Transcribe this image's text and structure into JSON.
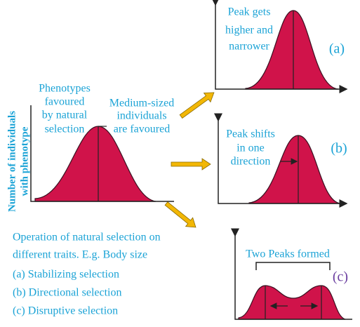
{
  "y_axis_label": [
    "Number of individuals",
    "with phenotype"
  ],
  "main_graph": {
    "left_label": [
      "Phenotypes",
      "favoured",
      "by natural",
      "selection"
    ],
    "right_label": [
      "Medium-sized",
      "individuals",
      "are favoured"
    ]
  },
  "graph_a": {
    "label": [
      "Peak gets",
      "higher and",
      "narrower"
    ],
    "tag": "(a)"
  },
  "graph_b": {
    "label": [
      "Peak shifts",
      "in one",
      "direction"
    ],
    "tag": "(b)"
  },
  "graph_c": {
    "label": "Two Peaks formed",
    "tag": "(c)"
  },
  "caption": [
    "Operation of natural selection on",
    "different traits. E.g. Body size",
    "(a) Stabilizing selection",
    "(b) Directional selection",
    "(c) Disruptive selection"
  ]
}
